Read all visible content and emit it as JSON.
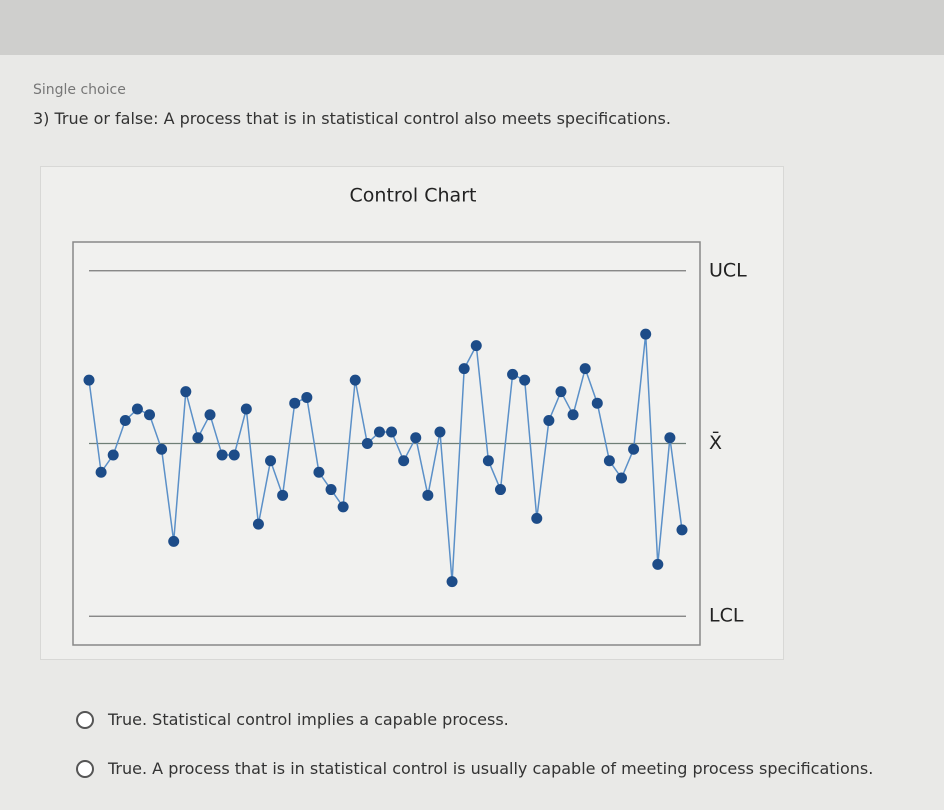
{
  "header": {
    "kind": "Single choice",
    "question": "3) True or false: A process that is in statistical control also meets specifications."
  },
  "chart_data": {
    "type": "line",
    "title": "Control Chart",
    "values": [
      1.1,
      -0.5,
      -0.2,
      0.4,
      0.6,
      0.5,
      -0.1,
      -1.7,
      0.9,
      0.1,
      0.5,
      -0.2,
      -0.2,
      0.6,
      -1.4,
      -0.3,
      -0.9,
      0.7,
      0.8,
      -0.5,
      -0.8,
      -1.1,
      1.1,
      0,
      0.2,
      0.2,
      -0.3,
      0.1,
      -0.9,
      0.2,
      -2.4,
      1.3,
      1.7,
      -0.3,
      -0.8,
      1.2,
      1.1,
      -1.3,
      0.4,
      0.9,
      0.5,
      1.3,
      0.7,
      -0.3,
      -0.6,
      -0.1,
      1.9,
      -2.1,
      0.1,
      -1.5
    ],
    "color": "#5b90c8",
    "marker_color": "#1d4c88",
    "ylim": [
      -3.5,
      3.5
    ],
    "control_lines": [
      {
        "label": "UCL",
        "value": 3
      },
      {
        "label": "X̄",
        "value": 0
      },
      {
        "label": "LCL",
        "value": -3
      }
    ]
  },
  "options": [
    "True. Statistical control implies a capable process.",
    "True. A process that is in statistical control is usually capable of meeting process specifications."
  ]
}
